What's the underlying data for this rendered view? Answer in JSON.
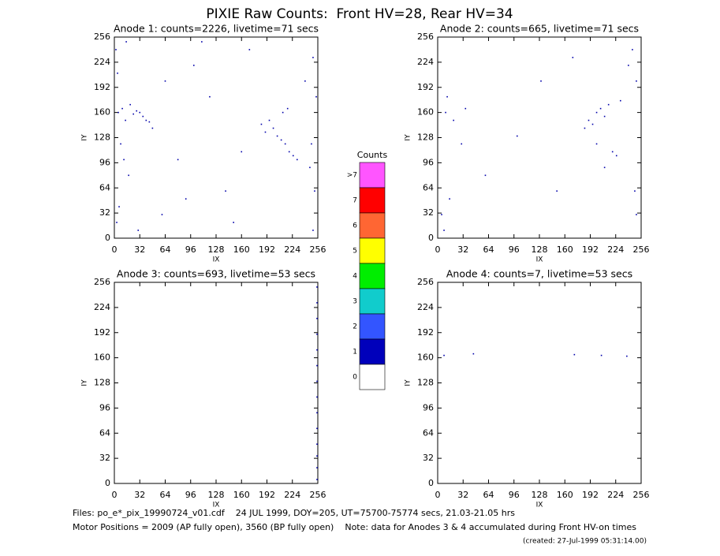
{
  "title": "PIXIE Raw Counts:  Front HV=28, Rear HV=34",
  "footer": [
    "Files: po_e*_pix_19990724_v01.cdf    24 JUL 1999, DOY=205, UT=75700-75774 secs, 21.03-21.05 hrs",
    "Motor Positions = 2009 (AP fully open), 3560 (BP fully open)    Note: data for Anodes 3 & 4 accumulated during Front HV-on times",
    "(created: 27-Jul-1999 05:31:14.00)"
  ],
  "colorbar": {
    "title": "Counts",
    "labels": [
      ">7",
      "7",
      "6",
      "5",
      "4",
      "3",
      "2",
      "1",
      "0"
    ],
    "colors": [
      "#ff55ff",
      "#ff0000",
      "#ff6633",
      "#ffff00",
      "#00ee00",
      "#11cccc",
      "#3355ff",
      "#0000bb",
      "#ffffff"
    ]
  },
  "chart_data": [
    {
      "type": "scatter",
      "title": "Anode 1: counts=2226, livetime=71 secs",
      "xlabel": "IX",
      "ylabel": "IY",
      "color": "#0000aa",
      "xlim": [
        0,
        256
      ],
      "ylim": [
        0,
        256
      ],
      "xticks": [
        0,
        32,
        64,
        96,
        128,
        160,
        192,
        224,
        256
      ],
      "yticks": [
        0,
        32,
        64,
        96,
        128,
        160,
        192,
        224,
        256
      ],
      "x": [
        5,
        10,
        14,
        20,
        24,
        28,
        32,
        36,
        40,
        44,
        48,
        8,
        12,
        18,
        200,
        205,
        210,
        215,
        220,
        225,
        195,
        190,
        185,
        212,
        218,
        230,
        240,
        250,
        252,
        3,
        6,
        2,
        4,
        250,
        254,
        60,
        90,
        120,
        150,
        170,
        100,
        80,
        30,
        140,
        160,
        64,
        110,
        248,
        246,
        15
      ],
      "y": [
        160,
        165,
        150,
        170,
        158,
        162,
        160,
        155,
        150,
        148,
        140,
        120,
        100,
        80,
        140,
        130,
        125,
        120,
        110,
        105,
        150,
        135,
        145,
        160,
        165,
        100,
        200,
        230,
        60,
        20,
        40,
        240,
        210,
        10,
        180,
        30,
        50,
        180,
        20,
        240,
        220,
        100,
        10,
        60,
        110,
        200,
        250,
        120,
        90,
        250
      ]
    },
    {
      "type": "scatter",
      "title": "Anode 2: counts=665, livetime=71 secs",
      "xlabel": "IX",
      "ylabel": "IY",
      "color": "#0000aa",
      "xlim": [
        0,
        256
      ],
      "ylim": [
        0,
        256
      ],
      "xticks": [
        0,
        32,
        64,
        96,
        128,
        160,
        192,
        224,
        256
      ],
      "yticks": [
        0,
        32,
        64,
        96,
        128,
        160,
        192,
        224,
        256
      ],
      "x": [
        190,
        195,
        200,
        205,
        210,
        215,
        185,
        200,
        220,
        225,
        230,
        240,
        250,
        10,
        20,
        30,
        15,
        5,
        60,
        100,
        150,
        250,
        245,
        8,
        12,
        35,
        130,
        170,
        210,
        248
      ],
      "y": [
        150,
        145,
        160,
        165,
        155,
        170,
        140,
        120,
        110,
        105,
        175,
        220,
        200,
        160,
        150,
        120,
        50,
        30,
        80,
        130,
        60,
        30,
        240,
        10,
        180,
        165,
        200,
        230,
        90,
        60
      ]
    },
    {
      "type": "scatter",
      "title": "Anode 3: counts=693, livetime=53 secs",
      "xlabel": "IX",
      "ylabel": "IY",
      "color": "#0000aa",
      "xlim": [
        0,
        256
      ],
      "ylim": [
        0,
        256
      ],
      "xticks": [
        0,
        32,
        64,
        96,
        128,
        160,
        192,
        224,
        256
      ],
      "yticks": [
        0,
        32,
        64,
        96,
        128,
        160,
        192,
        224,
        256
      ],
      "x": [
        255,
        255,
        255,
        255,
        255,
        255,
        255,
        255,
        255,
        255,
        255,
        255,
        255,
        255
      ],
      "y": [
        5,
        20,
        35,
        50,
        70,
        90,
        110,
        130,
        150,
        170,
        190,
        210,
        230,
        250
      ]
    },
    {
      "type": "scatter",
      "title": "Anode 4: counts=7, livetime=53 secs",
      "xlabel": "IX",
      "ylabel": "IY",
      "color": "#0000aa",
      "xlim": [
        0,
        256
      ],
      "ylim": [
        0,
        256
      ],
      "xticks": [
        0,
        32,
        64,
        96,
        128,
        160,
        192,
        224,
        256
      ],
      "yticks": [
        0,
        32,
        64,
        96,
        128,
        160,
        192,
        224,
        256
      ],
      "x": [
        8,
        45,
        172,
        206,
        238
      ],
      "y": [
        163,
        165,
        164,
        163,
        162
      ]
    }
  ]
}
